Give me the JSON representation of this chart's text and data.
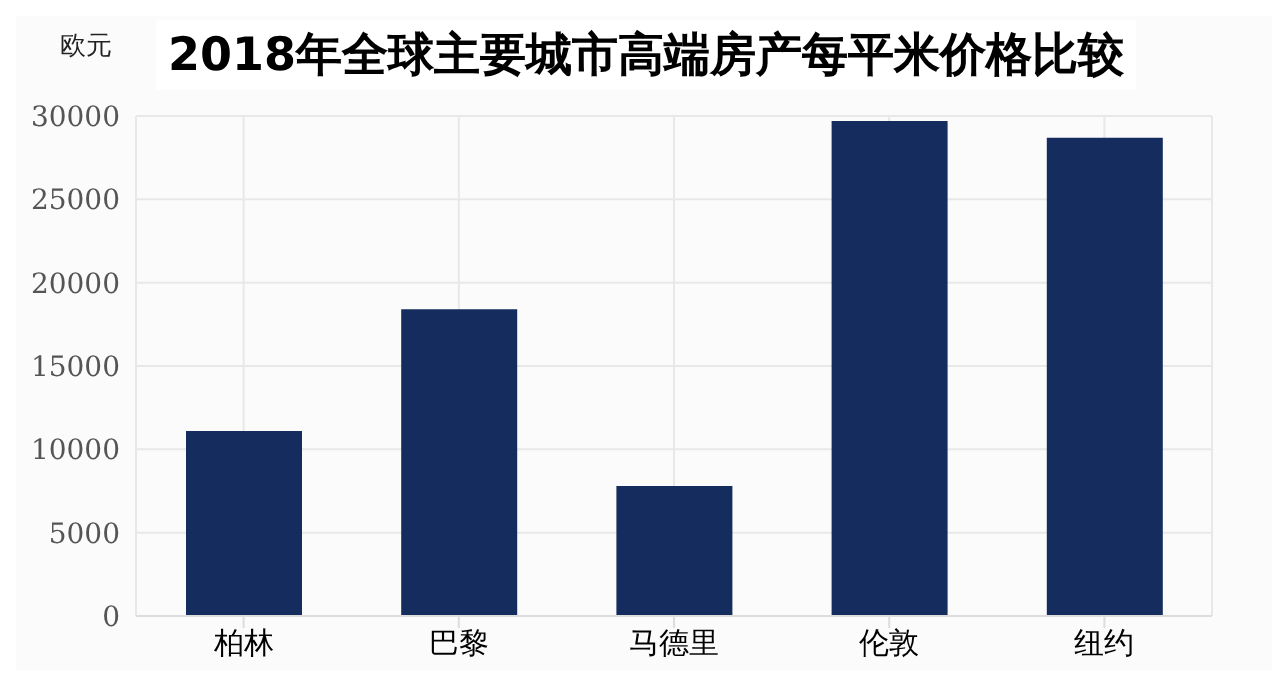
{
  "chart_data": {
    "type": "bar",
    "title": "2018年全球主要城市高端房产每平米价格比较",
    "ylabel": "欧元",
    "categories": [
      "柏林",
      "巴黎",
      "马德里",
      "伦敦",
      "纽约"
    ],
    "values": [
      11100,
      18400,
      7800,
      29700,
      28700
    ],
    "color": "#142d5e",
    "ylim": [
      0,
      30000
    ],
    "yticks": [
      0,
      5000,
      10000,
      15000,
      20000,
      25000,
      30000
    ],
    "grid": true
  }
}
